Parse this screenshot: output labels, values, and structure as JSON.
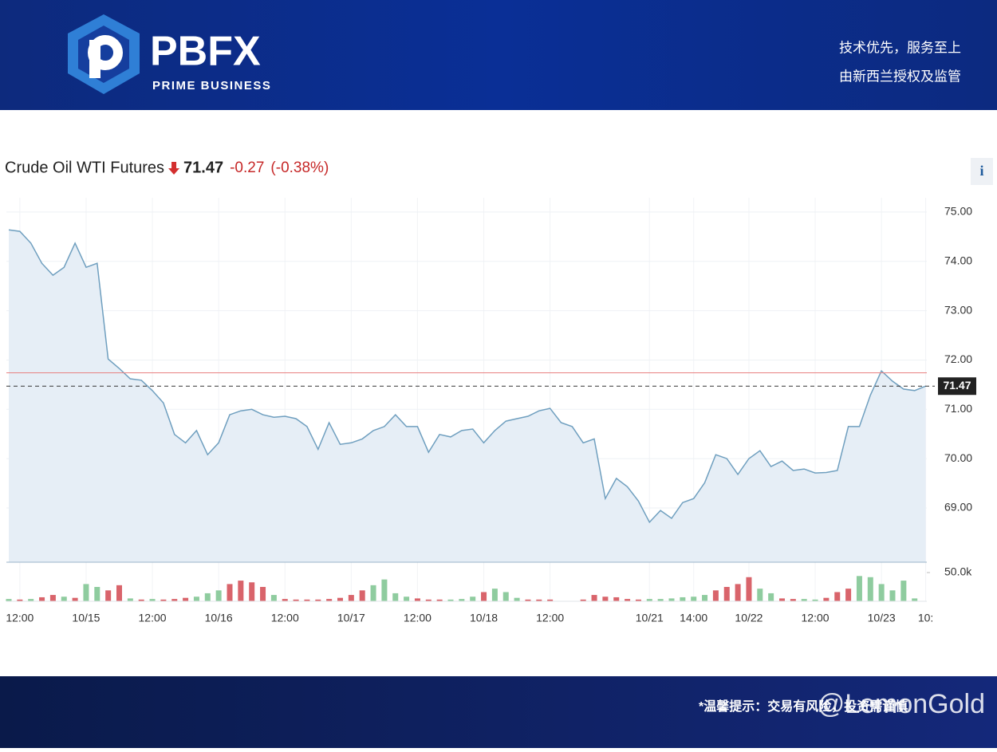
{
  "header": {
    "logo_mark": "PBFX",
    "logo_sub": "PRIME BUSINESS",
    "slogan_1": "技术优先，服务至上",
    "slogan_2": "由新西兰授权及监管"
  },
  "footer": {
    "notice": "*温馨提示：交易有风险，投资需谨慎",
    "watermark": "@LemonGold"
  },
  "info_button": "i",
  "chart_data": [
    {
      "type": "line",
      "title": "Crude Oil WTI Futures",
      "last": 71.47,
      "change": -0.27,
      "change_pct": "(-0.38%)",
      "color": "#6f9fbf",
      "fill_color": "#e6eef6",
      "reference_line": 71.74,
      "reference_color": "#e88080",
      "ylim": [
        67.9,
        75.29
      ],
      "yticks": [
        {
          "value": 69,
          "label": "69.00"
        },
        {
          "value": 70,
          "label": "70.00"
        },
        {
          "value": 71,
          "label": "71.00"
        },
        {
          "value": 72,
          "label": "72.00"
        },
        {
          "value": 73,
          "label": "73.00"
        },
        {
          "value": 74,
          "label": "74.00"
        },
        {
          "value": 75,
          "label": "75.00"
        }
      ],
      "categories": [
        null,
        "12:00",
        null,
        null,
        null,
        null,
        null,
        "10/15",
        null,
        null,
        null,
        null,
        null,
        "12:00",
        null,
        null,
        null,
        null,
        null,
        "10/16",
        null,
        null,
        null,
        null,
        null,
        "12:00",
        null,
        null,
        null,
        null,
        null,
        "10/17",
        null,
        null,
        null,
        null,
        null,
        "12:00",
        null,
        null,
        null,
        null,
        null,
        "10/18",
        null,
        null,
        null,
        null,
        null,
        "12:00",
        null,
        null,
        null,
        null,
        null,
        null,
        null,
        null,
        "10/21",
        null,
        null,
        null,
        "14:00",
        null,
        null,
        null,
        null,
        "10/22",
        null,
        null,
        null,
        null,
        null,
        "12:00",
        null,
        null,
        null,
        null,
        null,
        "10/23",
        null,
        null,
        null,
        "10:"
      ],
      "values": [
        74.64,
        74.61,
        74.37,
        73.96,
        73.72,
        73.88,
        74.37,
        73.88,
        73.96,
        72.02,
        71.83,
        71.62,
        71.59,
        71.38,
        71.13,
        70.49,
        70.32,
        70.57,
        70.08,
        70.32,
        70.89,
        70.97,
        71.0,
        70.89,
        70.84,
        70.86,
        70.81,
        70.65,
        70.19,
        70.73,
        70.29,
        70.32,
        70.4,
        70.57,
        70.65,
        70.89,
        70.65,
        70.65,
        70.13,
        70.49,
        70.44,
        70.57,
        70.6,
        70.32,
        70.57,
        70.76,
        70.81,
        70.86,
        70.97,
        71.02,
        70.73,
        70.65,
        70.32,
        70.4,
        69.19,
        69.6,
        69.43,
        69.14,
        68.71,
        68.95,
        68.79,
        69.11,
        69.19,
        69.51,
        70.08,
        70.0,
        69.68,
        70.0,
        70.16,
        69.84,
        69.95,
        69.76,
        69.79,
        69.71,
        69.72,
        69.76,
        70.65,
        70.65,
        71.29,
        71.78,
        71.57,
        71.41,
        71.38,
        71.47
      ]
    },
    {
      "type": "bar",
      "ylim": [
        0,
        63900
      ],
      "yticks": [
        {
          "value": 50000,
          "label": "50.0k"
        }
      ],
      "values": [
        4000,
        3000,
        4000,
        7000,
        11000,
        8000,
        6000,
        30000,
        25000,
        19000,
        28000,
        5000,
        3000,
        4000,
        3000,
        4000,
        6000,
        8000,
        14000,
        19000,
        30000,
        36000,
        33000,
        25000,
        11000,
        4000,
        3000,
        3000,
        3000,
        4000,
        6000,
        11000,
        19000,
        28000,
        38000,
        14000,
        8000,
        5000,
        3000,
        3000,
        3000,
        4000,
        8000,
        16000,
        22000,
        16000,
        6000,
        3000,
        3000,
        3000,
        0,
        0,
        3000,
        11000,
        8000,
        7000,
        4000,
        3000,
        4000,
        4000,
        5000,
        7000,
        8000,
        11000,
        19000,
        25000,
        30000,
        42000,
        22000,
        14000,
        5000,
        4000,
        4000,
        3000,
        6000,
        16000,
        22000,
        44000,
        42000,
        30000,
        19000,
        36000,
        5000,
        0
      ],
      "colors": [
        "#8fcc9f",
        "#d9646b",
        "#8fcc9f",
        "#d9646b",
        "#d9646b",
        "#8fcc9f",
        "#d9646b",
        "#8fcc9f",
        "#8fcc9f",
        "#d9646b",
        "#d9646b",
        "#8fcc9f",
        "#d9646b",
        "#8fcc9f",
        "#d9646b",
        "#d9646b",
        "#d9646b",
        "#8fcc9f",
        "#8fcc9f",
        "#8fcc9f",
        "#d9646b",
        "#d9646b",
        "#d9646b",
        "#d9646b",
        "#8fcc9f",
        "#d9646b",
        "#d9646b",
        "#d9646b",
        "#d9646b",
        "#d9646b",
        "#d9646b",
        "#d9646b",
        "#d9646b",
        "#8fcc9f",
        "#8fcc9f",
        "#8fcc9f",
        "#8fcc9f",
        "#d9646b",
        "#d9646b",
        "#d9646b",
        "#8fcc9f",
        "#8fcc9f",
        "#8fcc9f",
        "#d9646b",
        "#8fcc9f",
        "#8fcc9f",
        "#8fcc9f",
        "#d9646b",
        "#d9646b",
        "#d9646b",
        "#d9646b",
        "#d9646b",
        "#d9646b",
        "#d9646b",
        "#d9646b",
        "#d9646b",
        "#d9646b",
        "#d9646b",
        "#8fcc9f",
        "#8fcc9f",
        "#8fcc9f",
        "#8fcc9f",
        "#8fcc9f",
        "#8fcc9f",
        "#d9646b",
        "#d9646b",
        "#d9646b",
        "#d9646b",
        "#8fcc9f",
        "#8fcc9f",
        "#d9646b",
        "#d9646b",
        "#8fcc9f",
        "#8fcc9f",
        "#d9646b",
        "#d9646b",
        "#d9646b",
        "#8fcc9f",
        "#8fcc9f",
        "#8fcc9f",
        "#8fcc9f",
        "#8fcc9f",
        "#8fcc9f",
        "#8fcc9f"
      ]
    }
  ]
}
